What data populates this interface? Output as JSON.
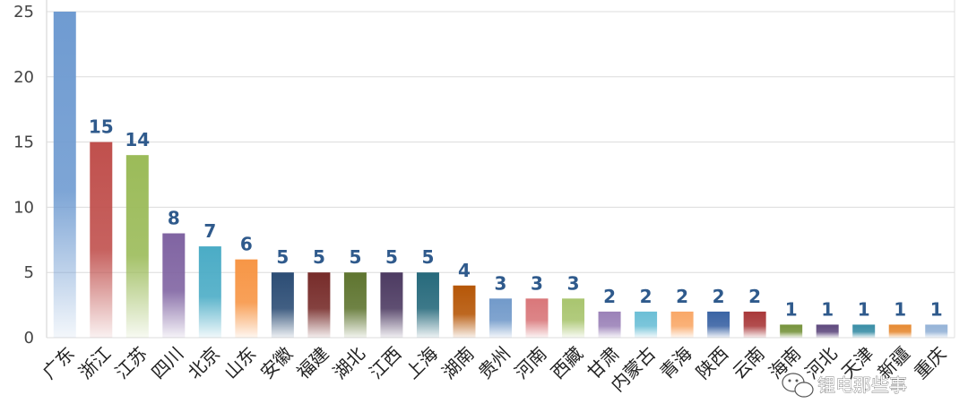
{
  "chart_data": {
    "type": "bar",
    "categories": [
      "广东",
      "浙江",
      "江苏",
      "四川",
      "北京",
      "山东",
      "安徽",
      "福建",
      "湖北",
      "江西",
      "上海",
      "湖南",
      "贵州",
      "河南",
      "西藏",
      "甘肃",
      "内蒙古",
      "青海",
      "陕西",
      "云南",
      "海南",
      "河北",
      "天津",
      "新疆",
      "重庆"
    ],
    "values": [
      25,
      15,
      14,
      8,
      7,
      6,
      5,
      5,
      5,
      5,
      5,
      4,
      3,
      3,
      3,
      2,
      2,
      2,
      2,
      2,
      1,
      1,
      1,
      1,
      1
    ],
    "data_labels": [
      null,
      "15",
      "14",
      "8",
      "7",
      "6",
      "5",
      "5",
      "5",
      "5",
      "5",
      "4",
      "3",
      "3",
      "3",
      "2",
      "2",
      "2",
      "2",
      "2",
      "1",
      "1",
      "1",
      "1",
      "1"
    ],
    "ylim": [
      0,
      25
    ],
    "yticks": [
      "0",
      "5",
      "10",
      "15",
      "20",
      "25"
    ],
    "grid": true,
    "colors": [
      "#6f9bd1",
      "#c0504d",
      "#9bbb59",
      "#8064a2",
      "#4bacc6",
      "#f79646",
      "#2c4d75",
      "#772c2a",
      "#5f7530",
      "#4d3b62",
      "#276a7c",
      "#b65708",
      "#729aca",
      "#d9777a",
      "#a9c56f",
      "#9b82b8",
      "#6cbfd6",
      "#f9a868",
      "#3a63a4",
      "#a9393a",
      "#76933c",
      "#5f4a7e",
      "#3a8ea6",
      "#e68a33",
      "#95b3d7"
    ],
    "title": "",
    "xlabel": "",
    "ylabel": ""
  },
  "watermark": "锂电那些事"
}
